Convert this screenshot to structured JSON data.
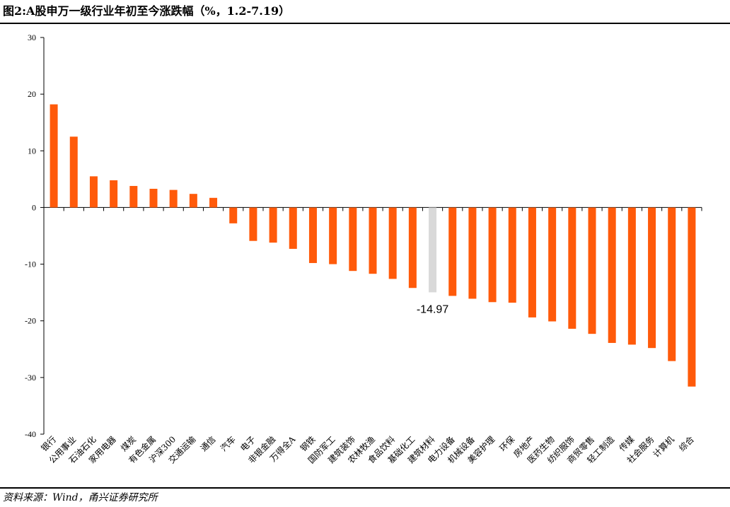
{
  "page": {
    "title": "图2:A股申万一级行业年初至今涨跌幅（%，1.2-7.19）",
    "source": "资料来源：Wind，甬兴证券研究所"
  },
  "colors": {
    "bar": "#FF5A0A",
    "highlight_bar": "#D9D9D9",
    "axis": "#000000"
  },
  "chart_data": {
    "type": "bar",
    "title": "图2:A股申万一级行业年初至今涨跌幅（%，1.2-7.19）",
    "xlabel": "",
    "ylabel": "",
    "ylim": [
      -40,
      30
    ],
    "yticks": [
      30,
      20,
      10,
      0,
      -10,
      -20,
      -30,
      -40
    ],
    "grid": false,
    "legend": "none",
    "categories": [
      "银行",
      "公用事业",
      "石油石化",
      "家用电器",
      "煤炭",
      "有色金属",
      "沪深300",
      "交通运输",
      "通信",
      "汽车",
      "电子",
      "非银金融",
      "万得全A",
      "钢铁",
      "国防军工",
      "建筑装饰",
      "农林牧渔",
      "食品饮料",
      "基础化工",
      "建筑材料",
      "电力设备",
      "机械设备",
      "美容护理",
      "环保",
      "房地产",
      "医药生物",
      "纺织服饰",
      "商贸零售",
      "轻工制造",
      "传媒",
      "社会服务",
      "计算机",
      "综合"
    ],
    "values": [
      18.2,
      12.5,
      5.5,
      4.8,
      3.8,
      3.3,
      3.1,
      2.4,
      1.7,
      -2.8,
      -5.9,
      -6.2,
      -7.3,
      -9.8,
      -10.0,
      -11.2,
      -11.7,
      -12.6,
      -14.2,
      -14.97,
      -15.6,
      -16.1,
      -16.7,
      -16.8,
      -19.4,
      -20.1,
      -21.4,
      -22.3,
      -23.9,
      -24.2,
      -24.8,
      -27.1,
      -31.6
    ],
    "highlight_category": "建筑材料",
    "data_labels": [
      {
        "category": "建筑材料",
        "text": "-14.97"
      }
    ]
  }
}
